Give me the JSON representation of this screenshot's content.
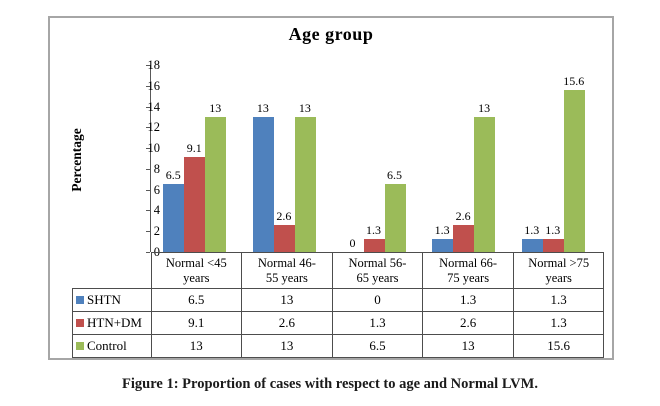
{
  "figure": {
    "title": "Age group",
    "y_axis_label": "Percentage",
    "caption": "Figure 1: Proportion of cases with respect to age and Normal LVM."
  },
  "chart_data": {
    "type": "bar",
    "title": "Age group",
    "xlabel": "",
    "ylabel": "Percentage",
    "ylim": [
      0,
      18
    ],
    "yticks": [
      0,
      2,
      4,
      6,
      8,
      10,
      12,
      14,
      16,
      18
    ],
    "grid": false,
    "legend_position": "table-left",
    "data_labels_shown": true,
    "categories": [
      "Normal <45 years",
      "Normal 46-55 years",
      "Normal 56-65 years",
      "Normal 66-75 years",
      "Normal >75 years"
    ],
    "category_labels_wrapped": [
      [
        "Normal <45",
        "years"
      ],
      [
        "Normal 46-",
        "55 years"
      ],
      [
        "Normal 56-",
        "65 years"
      ],
      [
        "Normal 66-",
        "75 years"
      ],
      [
        "Normal >75",
        "years"
      ]
    ],
    "series": [
      {
        "name": "SHTN",
        "color": "#4F81BD",
        "values": [
          6.5,
          13,
          0,
          1.3,
          1.3
        ]
      },
      {
        "name": "HTN+DM",
        "color": "#C0504D",
        "values": [
          9.1,
          2.6,
          1.3,
          2.6,
          1.3
        ]
      },
      {
        "name": "Control",
        "color": "#9BBB59",
        "values": [
          13,
          13,
          6.5,
          13,
          15.6
        ]
      }
    ]
  }
}
